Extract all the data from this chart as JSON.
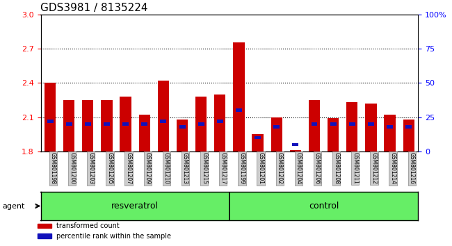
{
  "title": "GDS3981 / 8135224",
  "samples": [
    "GSM801198",
    "GSM801200",
    "GSM801203",
    "GSM801205",
    "GSM801207",
    "GSM801209",
    "GSM801210",
    "GSM801213",
    "GSM801215",
    "GSM801217",
    "GSM801199",
    "GSM801201",
    "GSM801202",
    "GSM801204",
    "GSM801206",
    "GSM801208",
    "GSM801211",
    "GSM801212",
    "GSM801214",
    "GSM801216"
  ],
  "red_values": [
    2.4,
    2.25,
    2.25,
    2.25,
    2.28,
    2.12,
    2.42,
    2.08,
    2.28,
    2.3,
    2.76,
    1.95,
    2.1,
    1.81,
    2.25,
    2.09,
    2.23,
    2.22,
    2.12,
    2.08
  ],
  "blue_pct": [
    22,
    20,
    20,
    20,
    20,
    20,
    22,
    18,
    20,
    22,
    30,
    10,
    18,
    5,
    20,
    20,
    20,
    20,
    18,
    18
  ],
  "ylim_left": [
    1.8,
    3.0
  ],
  "yticks_left": [
    1.8,
    2.1,
    2.4,
    2.7,
    3.0
  ],
  "yticks_right": [
    0,
    25,
    50,
    75,
    100
  ],
  "ytick_labels_right": [
    "0",
    "25",
    "50",
    "75",
    "100%"
  ],
  "resveratrol_count": 10,
  "control_count": 10,
  "bar_color_red": "#cc0000",
  "bar_color_blue": "#1111bb",
  "bar_width": 0.6,
  "agent_label": "agent",
  "group1_label": "resveratrol",
  "group2_label": "control",
  "legend_red": "transformed count",
  "legend_blue": "percentile rank within the sample",
  "group_bg_color": "#66ee66",
  "tick_label_bg": "#cccccc",
  "title_fontsize": 11,
  "axis_fontsize": 8,
  "group_fontsize": 9,
  "dotted_lines": [
    2.1,
    2.4,
    2.7
  ]
}
